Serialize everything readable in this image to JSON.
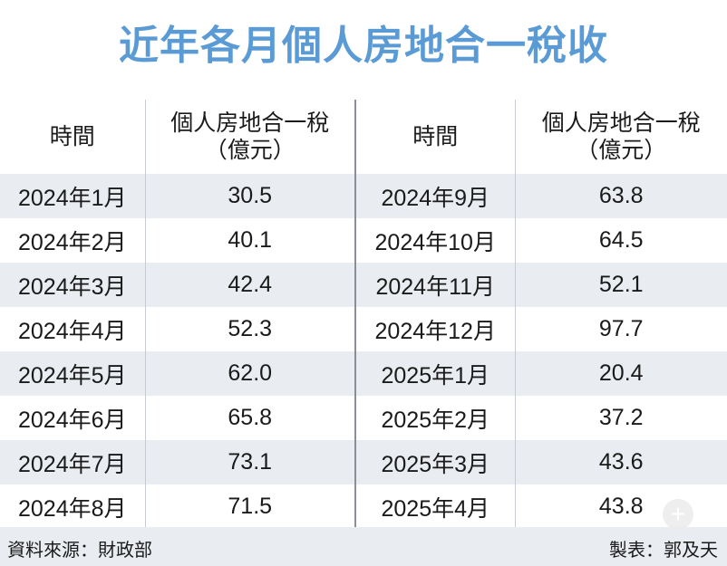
{
  "title": "近年各月個人房地合一稅收",
  "chart_data": {
    "type": "table",
    "title": "近年各月個人房地合一稅收",
    "columns": [
      "時間",
      "個人房地合一稅（億元）"
    ],
    "header_col1": "時間",
    "header_col2_line1": "個人房地合一稅",
    "header_col2_line2": "（億元）",
    "left_rows": [
      {
        "time": "2024年1月",
        "value": "30.5"
      },
      {
        "time": "2024年2月",
        "value": "40.1"
      },
      {
        "time": "2024年3月",
        "value": "42.4"
      },
      {
        "time": "2024年4月",
        "value": "52.3"
      },
      {
        "time": "2024年5月",
        "value": "62.0"
      },
      {
        "time": "2024年6月",
        "value": "65.8"
      },
      {
        "time": "2024年7月",
        "value": "73.1"
      },
      {
        "time": "2024年8月",
        "value": "71.5"
      }
    ],
    "right_rows": [
      {
        "time": "2024年9月",
        "value": "63.8"
      },
      {
        "time": "2024年10月",
        "value": "64.5"
      },
      {
        "time": "2024年11月",
        "value": "52.1"
      },
      {
        "time": "2024年12月",
        "value": "97.7"
      },
      {
        "time": "2025年1月",
        "value": "20.4"
      },
      {
        "time": "2025年2月",
        "value": "37.2"
      },
      {
        "time": "2025年3月",
        "value": "43.6"
      },
      {
        "time": "2025年4月",
        "value": "43.8"
      }
    ]
  },
  "footer": {
    "source": "資料來源：財政部",
    "maker": "製表：郭及天"
  },
  "colors": {
    "title": "#5b9bd5",
    "row_shade": "#e9ecf0"
  },
  "icons": {
    "zoom": "plus-icon"
  }
}
